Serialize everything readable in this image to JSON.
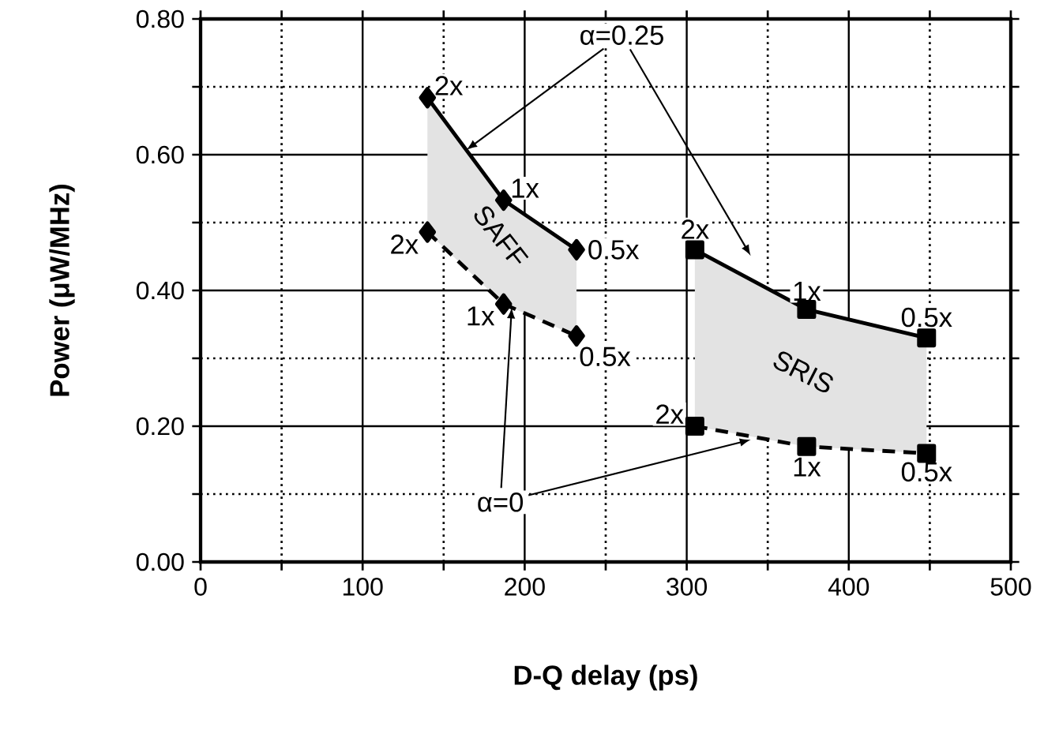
{
  "chart_data": {
    "type": "line",
    "xlabel": "D-Q delay (ps)",
    "ylabel": "Power (μW/MHz)",
    "xlim": [
      0,
      500
    ],
    "ylim": [
      0,
      0.8
    ],
    "xticks": [
      0,
      {
        "value": 50,
        "label": null
      },
      100,
      {
        "value": 150,
        "label": null
      },
      200,
      {
        "value": 250,
        "label": null
      },
      300,
      {
        "value": 350,
        "label": null
      },
      400,
      {
        "value": 450,
        "label": null
      },
      500
    ],
    "yticks": [
      {
        "value": 0,
        "label": "0.00"
      },
      {
        "value": 0.1,
        "label": null
      },
      {
        "value": 0.2,
        "label": "0.20"
      },
      {
        "value": 0.3,
        "label": null
      },
      {
        "value": 0.4,
        "label": "0.40"
      },
      {
        "value": 0.5,
        "label": null
      },
      {
        "value": 0.6,
        "label": "0.60"
      },
      {
        "value": 0.7,
        "label": null
      },
      {
        "value": 0.8,
        "label": "0.80"
      }
    ],
    "grid": true,
    "series": [
      {
        "color": "#000000",
        "marker": "diamond",
        "line_style": "solid",
        "x": [
          140,
          187,
          232
        ],
        "values": [
          0.684,
          0.533,
          0.46
        ],
        "lower": [
          0.486,
          0.38,
          0.333
        ],
        "upper": [
          0.684,
          0.533,
          0.46
        ]
      },
      {
        "color": "#000000",
        "marker": "diamond",
        "line_style": "dashed",
        "x": [
          140,
          187,
          232
        ],
        "values": [
          0.486,
          0.38,
          0.333
        ]
      },
      {
        "color": "#000000",
        "marker": "square",
        "line_style": "solid",
        "x": [
          305,
          374,
          448
        ],
        "values": [
          0.46,
          0.372,
          0.33
        ],
        "lower": [
          0.2,
          0.17,
          0.16
        ],
        "upper": [
          0.46,
          0.372,
          0.33
        ]
      },
      {
        "color": "#000000",
        "marker": "square",
        "line_style": "dashed",
        "x": [
          305,
          374,
          448
        ],
        "values": [
          0.2,
          0.17,
          0.16
        ]
      }
    ],
    "annotations": [
      {
        "text": "2x",
        "x": 140,
        "y": 0.684
      },
      {
        "text": "1x",
        "x": 187,
        "y": 0.533
      },
      {
        "text": "0.5x",
        "x": 232,
        "y": 0.46
      },
      {
        "text": "2x",
        "x": 140,
        "y": 0.486
      },
      {
        "text": "1x",
        "x": 187,
        "y": 0.38
      },
      {
        "text": "0.5x",
        "x": 232,
        "y": 0.333
      },
      {
        "text": "2x",
        "x": 305,
        "y": 0.46
      },
      {
        "text": "1x",
        "x": 374,
        "y": 0.372
      },
      {
        "text": "0.5x",
        "x": 448,
        "y": 0.33
      },
      {
        "text": "2x",
        "x": 305,
        "y": 0.2
      },
      {
        "text": "1x",
        "x": 374,
        "y": 0.17
      },
      {
        "text": "0.5x",
        "x": 448,
        "y": 0.16
      },
      "SAFF",
      "SRIS",
      {
        "text": "α=0.25",
        "x": 164,
        "y": 0.607
      },
      {
        "text": "α=0",
        "x": 192,
        "y": 0.375
      }
    ]
  }
}
